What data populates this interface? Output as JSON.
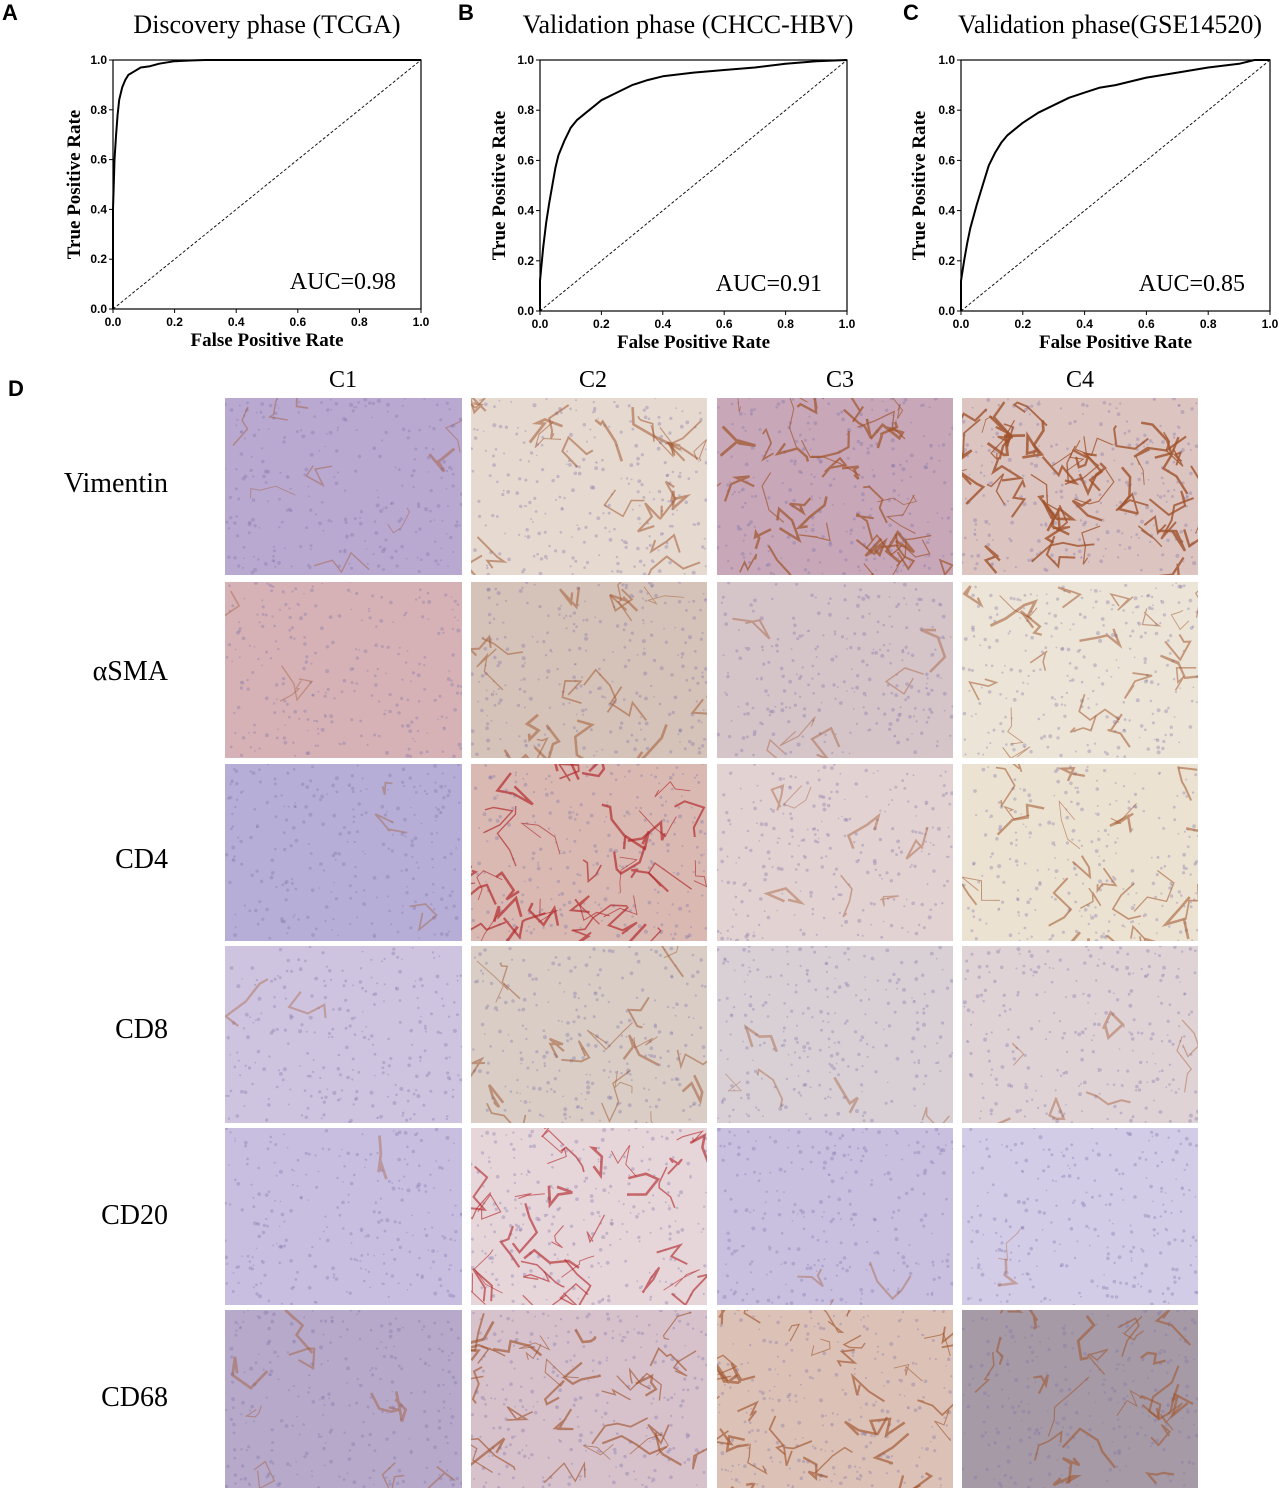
{
  "panels": {
    "A": "A",
    "B": "B",
    "C": "C",
    "D": "D"
  },
  "chart_data": [
    {
      "type": "line",
      "panel": "A",
      "title": "Discovery phase (TCGA)",
      "xlabel": "False Positive Rate",
      "ylabel": "True Positive Rate",
      "xlim": [
        0,
        1
      ],
      "ylim": [
        0,
        1
      ],
      "xticks": [
        "0.0",
        "0.2",
        "0.4",
        "0.6",
        "0.8",
        "1.0"
      ],
      "yticks": [
        "0.0",
        "0.2",
        "0.4",
        "0.6",
        "0.8",
        "1.0"
      ],
      "annotation": "AUC=0.98",
      "series": [
        {
          "x": [
            0,
            0,
            0.005,
            0.01,
            0.015,
            0.02,
            0.03,
            0.04,
            0.05,
            0.07,
            0.09,
            0.12,
            0.15,
            0.2,
            0.25,
            0.3,
            0.5,
            1.0
          ],
          "y": [
            0,
            0.4,
            0.6,
            0.7,
            0.78,
            0.84,
            0.89,
            0.92,
            0.94,
            0.955,
            0.97,
            0.975,
            0.985,
            0.995,
            0.998,
            1.0,
            1.0,
            1.0
          ]
        }
      ],
      "reference_line": {
        "x": [
          0,
          1
        ],
        "y": [
          0,
          1
        ]
      }
    },
    {
      "type": "line",
      "panel": "B",
      "title": "Validation phase (CHCC-HBV)",
      "xlabel": "False Positive Rate",
      "ylabel": "True Positive Rate",
      "xlim": [
        0,
        1
      ],
      "ylim": [
        0,
        1
      ],
      "xticks": [
        "0.0",
        "0.2",
        "0.4",
        "0.6",
        "0.8",
        "1.0"
      ],
      "yticks": [
        "0.0",
        "0.2",
        "0.4",
        "0.6",
        "0.8",
        "1.0"
      ],
      "annotation": "AUC=0.91",
      "series": [
        {
          "x": [
            0,
            0,
            0.01,
            0.02,
            0.03,
            0.04,
            0.05,
            0.06,
            0.08,
            0.1,
            0.12,
            0.15,
            0.18,
            0.2,
            0.25,
            0.3,
            0.35,
            0.4,
            0.5,
            0.6,
            0.7,
            0.8,
            0.9,
            1.0
          ],
          "y": [
            0,
            0.12,
            0.25,
            0.35,
            0.43,
            0.5,
            0.57,
            0.62,
            0.68,
            0.73,
            0.76,
            0.79,
            0.82,
            0.84,
            0.87,
            0.9,
            0.92,
            0.935,
            0.95,
            0.96,
            0.97,
            0.985,
            0.995,
            1.0
          ]
        }
      ],
      "reference_line": {
        "x": [
          0,
          1
        ],
        "y": [
          0,
          1
        ]
      }
    },
    {
      "type": "line",
      "panel": "C",
      "title": "Validation phase(GSE14520)",
      "xlabel": "False Positive Rate",
      "ylabel": "True Positive Rate",
      "xlim": [
        0,
        1
      ],
      "ylim": [
        0,
        1
      ],
      "xticks": [
        "0.0",
        "0.2",
        "0.4",
        "0.6",
        "0.8",
        "1.0"
      ],
      "yticks": [
        "0.0",
        "0.2",
        "0.4",
        "0.6",
        "0.8",
        "1.0"
      ],
      "annotation": "AUC=0.85",
      "series": [
        {
          "x": [
            0,
            0,
            0.01,
            0.02,
            0.03,
            0.05,
            0.07,
            0.09,
            0.11,
            0.13,
            0.15,
            0.18,
            0.2,
            0.25,
            0.3,
            0.35,
            0.4,
            0.45,
            0.5,
            0.6,
            0.7,
            0.8,
            0.9,
            0.95,
            1.0
          ],
          "y": [
            0,
            0.12,
            0.2,
            0.27,
            0.33,
            0.42,
            0.5,
            0.58,
            0.63,
            0.67,
            0.7,
            0.73,
            0.75,
            0.79,
            0.82,
            0.85,
            0.87,
            0.89,
            0.9,
            0.93,
            0.95,
            0.97,
            0.985,
            1.0,
            1.0
          ]
        }
      ],
      "reference_line": {
        "x": [
          0,
          1
        ],
        "y": [
          0,
          1
        ]
      }
    }
  ],
  "ihc": {
    "columns": [
      "C1",
      "C2",
      "C3",
      "C4"
    ],
    "rows": [
      "Vimentin",
      "αSMA",
      "CD4",
      "CD8",
      "CD20",
      "CD68"
    ],
    "stain_colors": {
      "background_purple": "#b6a7cf",
      "background_tan": "#d8c2a8",
      "brown_stain": "#a0532a",
      "red_stain": "#b3262a"
    }
  }
}
